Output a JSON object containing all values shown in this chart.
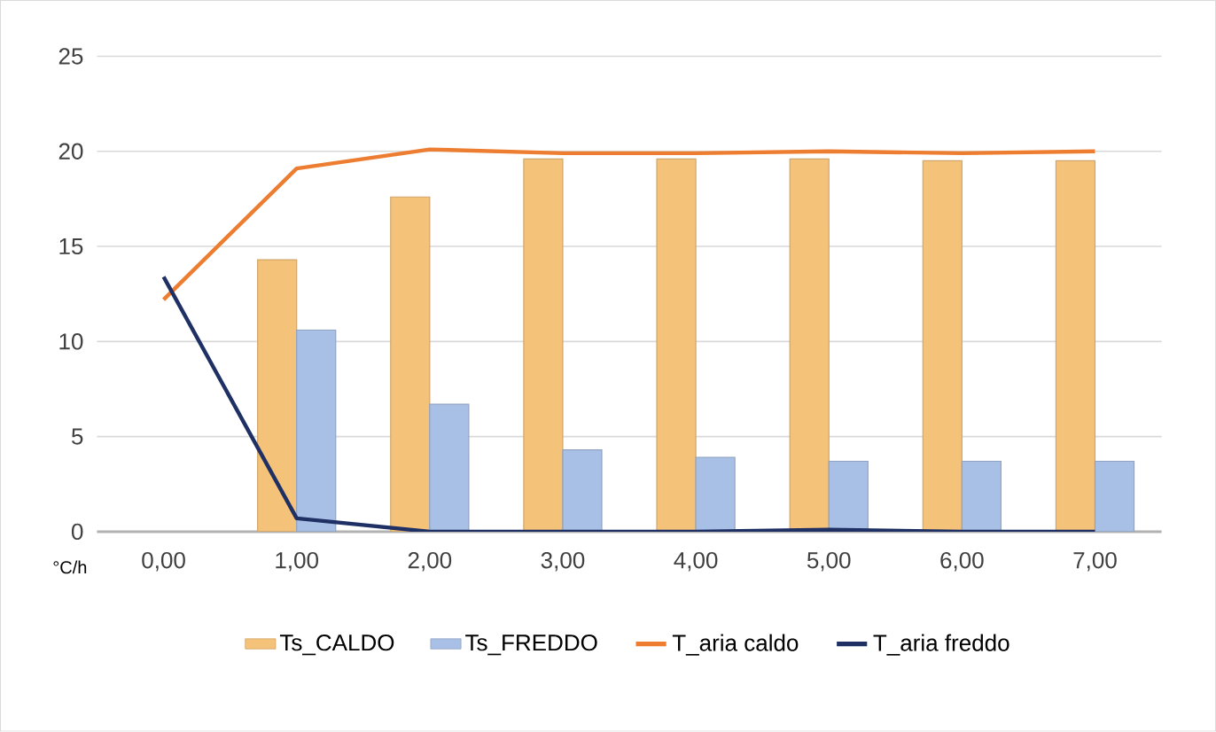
{
  "chart_data": {
    "type": "bar",
    "xlabel": "°C/h",
    "categories": [
      "0,00",
      "1,00",
      "2,00",
      "3,00",
      "4,00",
      "5,00",
      "6,00",
      "7,00"
    ],
    "series": [
      {
        "name": "Ts_CALDO",
        "color": "#f5c27a",
        "values": [
          null,
          14.3,
          17.6,
          19.6,
          19.6,
          19.6,
          19.5,
          19.5
        ]
      },
      {
        "name": "Ts_FREDDO",
        "color": "#a9c0e6",
        "values": [
          null,
          10.6,
          6.7,
          4.3,
          3.9,
          3.7,
          3.7,
          3.7
        ]
      },
      {
        "name": "T_aria caldo",
        "type": "line",
        "color": "#ed7d31",
        "values": [
          12.2,
          19.1,
          20.1,
          19.9,
          19.9,
          20.0,
          19.9,
          20.0
        ]
      },
      {
        "name": "T_aria freddo",
        "type": "line",
        "color": "#1f3064",
        "values": [
          13.4,
          0.7,
          0.0,
          0.0,
          0.0,
          0.1,
          0.0,
          0.0
        ]
      }
    ],
    "ylim": [
      0,
      25
    ],
    "yticks": [
      0,
      5,
      10,
      15,
      20,
      25
    ],
    "grid": "y",
    "legend": "bottom"
  }
}
